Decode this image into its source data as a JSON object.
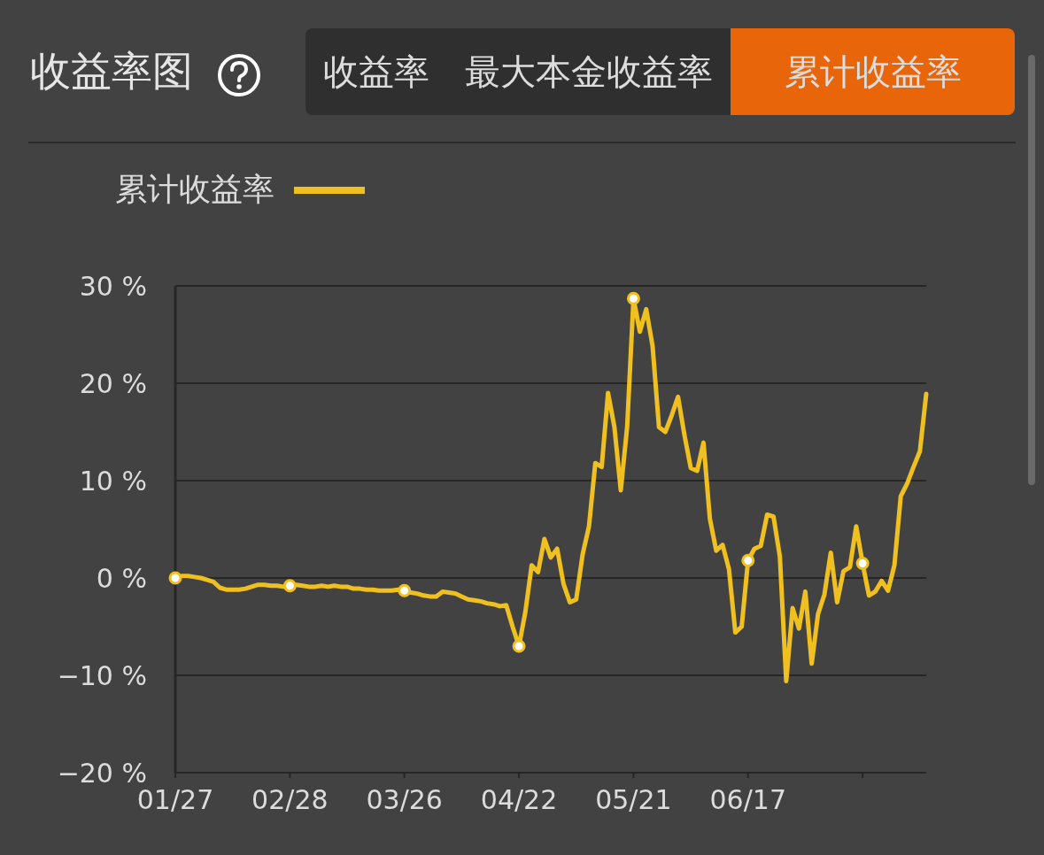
{
  "chart_data": {
    "type": "line",
    "title": "收益率图",
    "annotations": [
      "收益率",
      "最大本金收益率",
      "累计收益率"
    ],
    "categories": [
      "01/27",
      null,
      null,
      null,
      null,
      null,
      null,
      null,
      null,
      null,
      null,
      null,
      null,
      null,
      null,
      null,
      null,
      null,
      "02/28",
      null,
      null,
      null,
      null,
      null,
      null,
      null,
      null,
      null,
      null,
      null,
      null,
      null,
      null,
      null,
      null,
      null,
      "03/26",
      null,
      null,
      null,
      null,
      null,
      null,
      null,
      null,
      null,
      null,
      null,
      null,
      null,
      null,
      null,
      null,
      null,
      "04/22",
      null,
      null,
      null,
      null,
      null,
      null,
      null,
      null,
      null,
      null,
      null,
      null,
      null,
      null,
      null,
      null,
      null,
      "05/21",
      null,
      null,
      null,
      null,
      null,
      null,
      null,
      null,
      null,
      null,
      null,
      null,
      null,
      null,
      null,
      null,
      null,
      "06/17",
      null,
      null,
      null,
      null,
      null,
      null,
      null,
      null,
      null,
      null,
      null,
      null,
      null,
      null,
      null,
      null,
      null,
      null,
      null,
      null,
      null,
      null,
      null,
      null,
      null,
      null,
      null,
      null
    ],
    "series": [
      {
        "name": "累计收益率",
        "color": "#f0c020",
        "values": [
          0,
          0.2,
          0.2,
          0.1,
          0.0,
          -0.2,
          -0.4,
          -1.0,
          -1.2,
          -1.2,
          -1.2,
          -1.1,
          -0.9,
          -0.7,
          -0.7,
          -0.8,
          -0.8,
          -0.9,
          -0.8,
          -0.7,
          -0.8,
          -0.9,
          -0.9,
          -0.8,
          -0.9,
          -0.8,
          -0.9,
          -0.9,
          -1.1,
          -1.1,
          -1.2,
          -1.2,
          -1.3,
          -1.3,
          -1.3,
          -1.2,
          -1.3,
          -1.5,
          -1.6,
          -1.8,
          -1.9,
          -1.9,
          -1.4,
          -1.5,
          -1.6,
          -1.9,
          -2.2,
          -2.3,
          -2.4,
          -2.6,
          -2.7,
          -2.9,
          -2.8,
          -5.0,
          -7.0,
          -3.5,
          1.3,
          0.6,
          4.0,
          2.1,
          3.0,
          -0.6,
          -2.5,
          -2.2,
          2.4,
          5.3,
          11.8,
          11.4,
          19.0,
          15.5,
          9.0,
          15.5,
          28.7,
          25.3,
          27.6,
          23.8,
          15.5,
          15.0,
          16.7,
          18.6,
          14.7,
          11.3,
          11.0,
          13.9,
          6.1,
          2.8,
          3.4,
          0.9,
          -5.6,
          -5.0,
          1.8,
          3.0,
          3.3,
          6.5,
          6.3,
          2.2,
          -10.6,
          -3.1,
          -5.2,
          -1.4,
          -8.8,
          -3.7,
          -1.7,
          2.6,
          -2.5,
          0.7,
          1.1,
          5.3,
          1.5,
          -1.8,
          -1.4,
          -0.3,
          -1.3,
          1.3,
          8.4,
          9.7,
          11.4,
          13.0,
          18.9
        ]
      },
      {
        "type": "scatter",
        "marker": "circle",
        "color": "#ffffff",
        "values": [
          0,
          null,
          null,
          null,
          null,
          null,
          null,
          null,
          null,
          null,
          null,
          null,
          null,
          null,
          null,
          null,
          null,
          null,
          -0.8,
          null,
          null,
          null,
          null,
          null,
          null,
          null,
          null,
          null,
          null,
          null,
          null,
          null,
          null,
          null,
          null,
          null,
          -1.3,
          null,
          null,
          null,
          null,
          null,
          null,
          null,
          null,
          null,
          null,
          null,
          null,
          null,
          null,
          null,
          null,
          null,
          -7.0,
          null,
          null,
          null,
          null,
          null,
          null,
          null,
          null,
          null,
          null,
          null,
          null,
          null,
          null,
          null,
          null,
          null,
          28.7,
          null,
          null,
          null,
          null,
          null,
          null,
          null,
          null,
          null,
          null,
          null,
          null,
          null,
          null,
          null,
          null,
          null,
          1.8,
          null,
          null,
          null,
          null,
          null,
          null,
          null,
          null,
          null,
          null,
          null,
          null,
          null,
          null,
          null,
          null,
          null,
          1.5,
          null,
          null,
          null,
          null,
          null,
          null,
          null,
          null,
          null,
          null
        ]
      }
    ],
    "ylim": [
      -20,
      30
    ],
    "yticks": [
      {
        "value": -20,
        "label": "−20 %"
      },
      {
        "value": -10,
        "label": "−10 %"
      },
      {
        "value": 0,
        "label": "0 %"
      },
      {
        "value": 10,
        "label": "10 %"
      },
      {
        "value": 20,
        "label": "20 %"
      },
      {
        "value": 30,
        "label": "30 %"
      }
    ],
    "grid": "y",
    "legend": "top left",
    "line_style": "solid"
  }
}
